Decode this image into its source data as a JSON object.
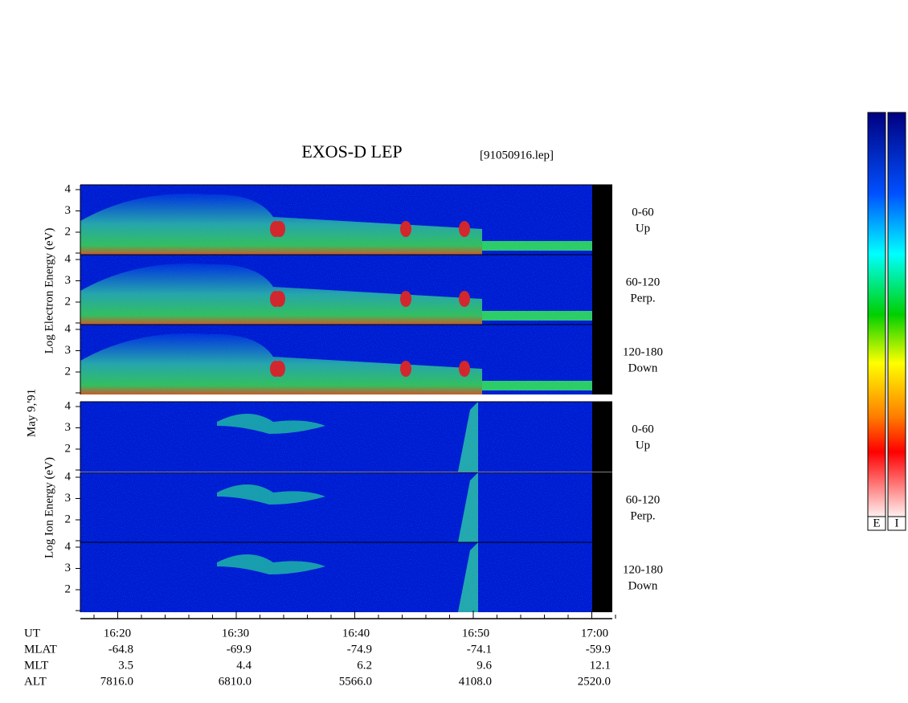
{
  "title": "EXOS-D LEP",
  "file": "[91050916.lep]",
  "date": "May  9,'91",
  "electron_axis": "Log Electron Energy (eV)",
  "ion_axis": "Log Ion Energy (eV)",
  "panels": [
    {
      "ticks": [
        "4",
        "3",
        "2"
      ],
      "angle": "0-60",
      "direction": "Up"
    },
    {
      "ticks": [
        "4",
        "3",
        "2"
      ],
      "angle": "60-120",
      "direction": "Perp."
    },
    {
      "ticks": [
        "4",
        "3",
        "2"
      ],
      "angle": "120-180",
      "direction": "Down"
    },
    {
      "ticks": [
        "4",
        "3",
        "2"
      ],
      "angle": "0-60",
      "direction": "Up"
    },
    {
      "ticks": [
        "4",
        "3",
        "2"
      ],
      "angle": "60-120",
      "direction": "Perp."
    },
    {
      "ticks": [
        "4",
        "3",
        "2"
      ],
      "angle": "120-180",
      "direction": "Down"
    }
  ],
  "time_axis": {
    "rows": [
      {
        "name": "UT",
        "values": [
          "16:20",
          "16:30",
          "16:40",
          "16:50",
          "17:00"
        ]
      },
      {
        "name": "MLAT",
        "values": [
          "-64.8",
          "-69.9",
          "-74.9",
          "-74.1",
          "-59.9"
        ]
      },
      {
        "name": "MLT",
        "values": [
          "3.5",
          "4.4",
          "6.2",
          "9.6",
          "12.1"
        ]
      },
      {
        "name": "ALT",
        "values": [
          "7816.0",
          "6810.0",
          "5566.0",
          "4108.0",
          "2520.0"
        ]
      }
    ]
  },
  "colorbars": [
    "E",
    "I"
  ]
}
